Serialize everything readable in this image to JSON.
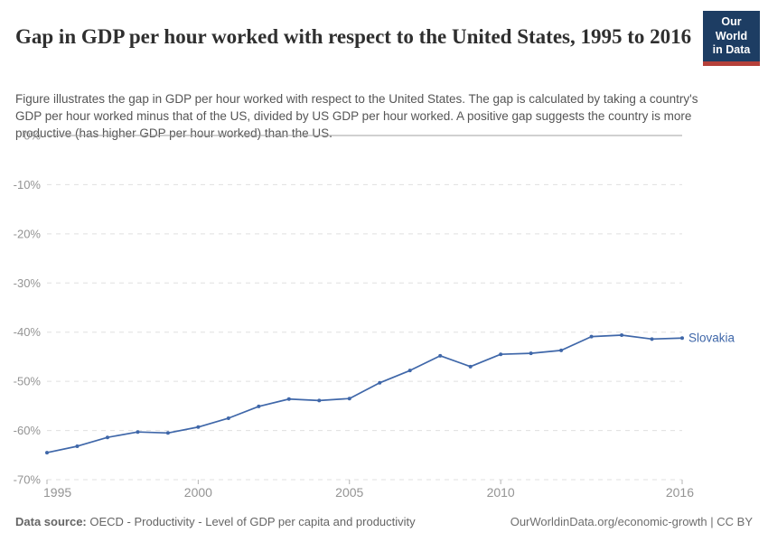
{
  "header": {
    "title": "Gap in GDP per hour worked with respect to the United States, 1995 to 2016",
    "subtitle": "Figure illustrates the gap in GDP per hour worked with respect to the United States. The gap is calculated by taking a country's GDP per hour worked minus that of the US, divided by US GDP per hour worked. A positive gap suggests the country is more productive (has higher GDP per hour worked) than the US.",
    "logo": {
      "line1": "Our World",
      "line2": "in Data",
      "bg_color": "#1d3d63",
      "accent_color": "#b5403a"
    }
  },
  "chart_data": {
    "type": "line",
    "title": "Gap in GDP per hour worked with respect to the United States, 1995 to 2016",
    "x": [
      1995,
      1996,
      1997,
      1998,
      1999,
      2000,
      2001,
      2002,
      2003,
      2004,
      2005,
      2006,
      2007,
      2008,
      2009,
      2010,
      2011,
      2012,
      2013,
      2014,
      2015,
      2016
    ],
    "series": [
      {
        "name": "Slovakia",
        "color": "#3f67a9",
        "values": [
          -64.5,
          -63.2,
          -61.4,
          -60.3,
          -60.5,
          -59.3,
          -57.5,
          -55.1,
          -53.6,
          -53.9,
          -53.5,
          -50.3,
          -47.8,
          -44.8,
          -47.0,
          -44.5,
          -44.3,
          -43.7,
          -40.9,
          -40.6,
          -41.4,
          -41.2
        ]
      }
    ],
    "xlabel": "",
    "ylabel": "",
    "ylim": [
      -70,
      0
    ],
    "xlim": [
      1995,
      2016
    ],
    "yticks": [
      0,
      -10,
      -20,
      -30,
      -40,
      -50,
      -60,
      -70
    ],
    "ytick_labels": [
      "0%",
      "-10%",
      "-20%",
      "-30%",
      "-40%",
      "-50%",
      "-60%",
      "-70%"
    ],
    "xticks": [
      1995,
      2000,
      2005,
      2010,
      2016
    ],
    "xtick_labels": [
      "1995",
      "2000",
      "2005",
      "2010",
      "2016"
    ],
    "grid": "horizontal-dashed",
    "legend_position": "end-of-line",
    "grid_color": "#e0e0e0",
    "zero_line_color": "#a0a0a0",
    "tick_color": "#b3b3b3",
    "tick_label_color": "#949494"
  },
  "footer": {
    "source_label": "Data source:",
    "source_text": " OECD - Productivity - Level of GDP per capita and productivity",
    "credit": "OurWorldinData.org/economic-growth | CC BY"
  }
}
